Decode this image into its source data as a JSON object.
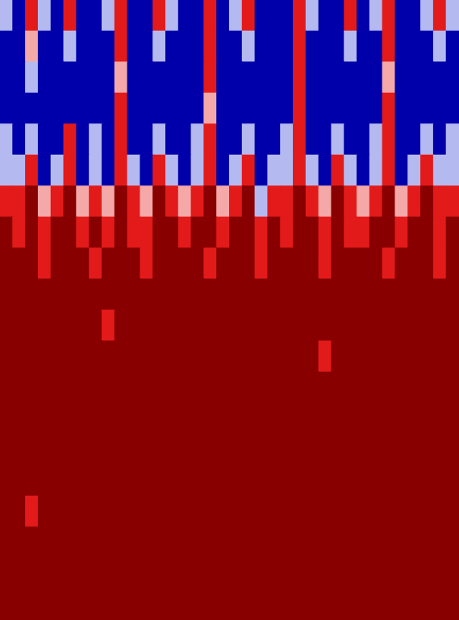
{
  "chart_data": {
    "type": "heatmap",
    "tick_labels": false,
    "xlim": [
      0,
      36
    ],
    "ylim": [
      0,
      20
    ],
    "zlim": [
      -1,
      1
    ],
    "cells": [
      [
        -0.3,
        -0.8,
        0.5,
        -0.3,
        -0.8,
        0.4,
        -0.8,
        -0.9,
        -0.3,
        0.5,
        -0.8,
        -0.8,
        0.4,
        -0.3,
        -0.9,
        -0.8,
        0.5,
        -0.8,
        -0.3,
        0.4,
        -0.8,
        -0.9,
        -0.8,
        0.5,
        -0.3,
        -0.8,
        -0.8,
        0.4,
        -0.8,
        -0.3,
        0.5,
        -0.8,
        -0.9,
        -0.3,
        0.4,
        -0.2
      ],
      [
        -0.6,
        -0.9,
        0.2,
        -0.8,
        -0.9,
        -0.3,
        -0.9,
        -0.9,
        -0.8,
        0.4,
        -0.9,
        -0.9,
        -0.3,
        -0.8,
        -0.9,
        -0.9,
        0.3,
        -0.9,
        -0.8,
        -0.3,
        -0.9,
        -0.9,
        -0.9,
        0.4,
        -0.8,
        -0.9,
        -0.9,
        -0.3,
        -0.9,
        -0.8,
        0.3,
        -0.9,
        -0.9,
        -0.8,
        -0.3,
        -0.6
      ],
      [
        -0.8,
        -0.9,
        -0.3,
        -0.9,
        -0.9,
        -0.8,
        -0.9,
        -0.9,
        -0.9,
        0.2,
        -0.9,
        -0.9,
        -0.8,
        -0.9,
        -0.9,
        -0.9,
        0.3,
        -0.9,
        -0.9,
        -0.8,
        -0.9,
        -0.9,
        -0.9,
        0.3,
        -0.9,
        -0.9,
        -0.9,
        -0.8,
        -0.9,
        -0.9,
        0.2,
        -0.9,
        -0.9,
        -0.9,
        -0.8,
        -0.8
      ],
      [
        -0.8,
        -0.9,
        -0.8,
        -0.9,
        -0.9,
        -0.9,
        -0.9,
        -0.8,
        -0.9,
        0.4,
        -0.9,
        -0.9,
        -0.9,
        -0.9,
        -0.8,
        -0.9,
        0.2,
        -0.9,
        -0.9,
        -0.9,
        -0.9,
        -0.9,
        -0.8,
        0.4,
        -0.9,
        -0.9,
        -0.9,
        -0.9,
        -0.9,
        -0.8,
        0.3,
        -0.9,
        -0.9,
        -0.9,
        -0.9,
        -0.8
      ],
      [
        -0.3,
        -0.8,
        -0.3,
        -0.9,
        -0.8,
        0.4,
        -0.8,
        -0.3,
        -0.9,
        0.5,
        -0.8,
        -0.9,
        -0.3,
        -0.8,
        -0.9,
        -0.3,
        0.4,
        -0.9,
        -0.8,
        -0.3,
        -0.9,
        -0.8,
        -0.3,
        0.5,
        -0.8,
        -0.9,
        -0.3,
        -0.8,
        -0.9,
        -0.3,
        0.4,
        -0.9,
        -0.8,
        -0.3,
        -0.8,
        -0.3
      ],
      [
        -0.2,
        -0.3,
        0.4,
        -0.6,
        -0.3,
        0.5,
        -0.7,
        -0.2,
        -0.6,
        0.6,
        -0.3,
        -0.7,
        0.4,
        -0.3,
        -0.6,
        -0.2,
        0.5,
        -0.6,
        -0.3,
        0.4,
        -0.7,
        -0.3,
        -0.2,
        0.6,
        -0.3,
        -0.6,
        0.4,
        -0.3,
        -0.7,
        -0.2,
        0.5,
        -0.6,
        -0.3,
        0.4,
        -0.3,
        -0.2
      ],
      [
        0.5,
        0.4,
        0.8,
        0.2,
        0.5,
        0.8,
        0.2,
        0.5,
        0.1,
        0.8,
        0.4,
        0.1,
        0.7,
        0.4,
        0.2,
        0.5,
        0.8,
        0.2,
        0.4,
        0.7,
        -0.2,
        0.4,
        0.5,
        0.8,
        0.3,
        0.2,
        0.7,
        0.4,
        0.1,
        0.5,
        0.8,
        0.2,
        0.4,
        0.7,
        0.5,
        0.5
      ],
      [
        0.8,
        0.6,
        0.9,
        0.6,
        0.8,
        0.9,
        0.5,
        0.8,
        0.6,
        0.9,
        0.6,
        0.5,
        0.9,
        0.8,
        0.6,
        0.8,
        0.9,
        0.6,
        0.8,
        0.9,
        0.5,
        0.8,
        0.6,
        0.9,
        0.8,
        0.6,
        0.9,
        0.6,
        0.5,
        0.8,
        0.9,
        0.6,
        0.8,
        0.9,
        0.6,
        0.8
      ],
      [
        1,
        0.9,
        1,
        0.6,
        1,
        1,
        0.9,
        0.6,
        1,
        0.9,
        1,
        0.6,
        1,
        1,
        0.9,
        1,
        0.6,
        1,
        1,
        0.9,
        0.6,
        1,
        1,
        0.9,
        1,
        0.6,
        1,
        1,
        0.9,
        1,
        0.6,
        1,
        0.9,
        1,
        0.6,
        1
      ],
      [
        1,
        1,
        1,
        1,
        1,
        1,
        1,
        1,
        1,
        1,
        1,
        1,
        1,
        1,
        1,
        1,
        1,
        1,
        1,
        1,
        1,
        1,
        1,
        1,
        1,
        1,
        1,
        1,
        1,
        1,
        1,
        1,
        1,
        1,
        1,
        1
      ],
      [
        1,
        1,
        1,
        1,
        1,
        1,
        1,
        1,
        0.6,
        1,
        1,
        1,
        1,
        1,
        1,
        1,
        1,
        1,
        1,
        1,
        1,
        1,
        1,
        1,
        1,
        1,
        1,
        1,
        1,
        1,
        1,
        1,
        1,
        1,
        1,
        1
      ],
      [
        1,
        1,
        1,
        1,
        1,
        1,
        1,
        1,
        1,
        1,
        1,
        1,
        1,
        1,
        1,
        1,
        1,
        1,
        1,
        1,
        1,
        1,
        1,
        1,
        1,
        0.6,
        1,
        1,
        1,
        1,
        1,
        1,
        1,
        1,
        1,
        1
      ],
      [
        1,
        1,
        1,
        1,
        1,
        1,
        1,
        1,
        1,
        1,
        1,
        1,
        1,
        1,
        1,
        1,
        1,
        1,
        1,
        1,
        1,
        1,
        1,
        1,
        1,
        1,
        1,
        1,
        1,
        1,
        1,
        1,
        1,
        1,
        1,
        1
      ],
      [
        1,
        1,
        1,
        1,
        1,
        1,
        1,
        1,
        1,
        1,
        1,
        1,
        1,
        1,
        1,
        1,
        1,
        1,
        1,
        1,
        1,
        1,
        1,
        1,
        1,
        1,
        1,
        1,
        1,
        1,
        1,
        1,
        1,
        1,
        1,
        1
      ],
      [
        1,
        1,
        1,
        1,
        1,
        1,
        1,
        1,
        1,
        1,
        1,
        1,
        1,
        1,
        1,
        1,
        1,
        1,
        1,
        1,
        1,
        1,
        1,
        1,
        1,
        1,
        1,
        1,
        1,
        1,
        1,
        1,
        1,
        1,
        1,
        1
      ],
      [
        1,
        1,
        1,
        1,
        1,
        1,
        1,
        1,
        1,
        1,
        1,
        1,
        1,
        1,
        1,
        1,
        1,
        1,
        1,
        1,
        1,
        1,
        1,
        1,
        1,
        1,
        1,
        1,
        1,
        1,
        1,
        1,
        1,
        1,
        1,
        1
      ],
      [
        1,
        1,
        0.6,
        1,
        1,
        1,
        1,
        1,
        1,
        1,
        1,
        1,
        1,
        1,
        1,
        1,
        1,
        1,
        1,
        1,
        1,
        1,
        1,
        1,
        1,
        1,
        1,
        1,
        1,
        1,
        1,
        1,
        1,
        1,
        1,
        1
      ],
      [
        1,
        1,
        1,
        1,
        1,
        1,
        1,
        1,
        1,
        1,
        1,
        1,
        1,
        1,
        1,
        1,
        1,
        1,
        1,
        1,
        1,
        1,
        1,
        1,
        1,
        1,
        1,
        1,
        1,
        1,
        1,
        1,
        1,
        1,
        1,
        1
      ],
      [
        1,
        1,
        1,
        1,
        1,
        1,
        1,
        1,
        1,
        1,
        1,
        1,
        1,
        1,
        1,
        1,
        1,
        1,
        1,
        1,
        1,
        1,
        1,
        1,
        1,
        1,
        1,
        1,
        1,
        1,
        1,
        1,
        1,
        1,
        1,
        1
      ],
      [
        1,
        1,
        1,
        1,
        1,
        1,
        1,
        1,
        1,
        1,
        1,
        1,
        1,
        1,
        1,
        1,
        1,
        1,
        1,
        1,
        1,
        1,
        1,
        1,
        1,
        1,
        1,
        1,
        1,
        1,
        1,
        1,
        1,
        1,
        1,
        1
      ]
    ]
  }
}
